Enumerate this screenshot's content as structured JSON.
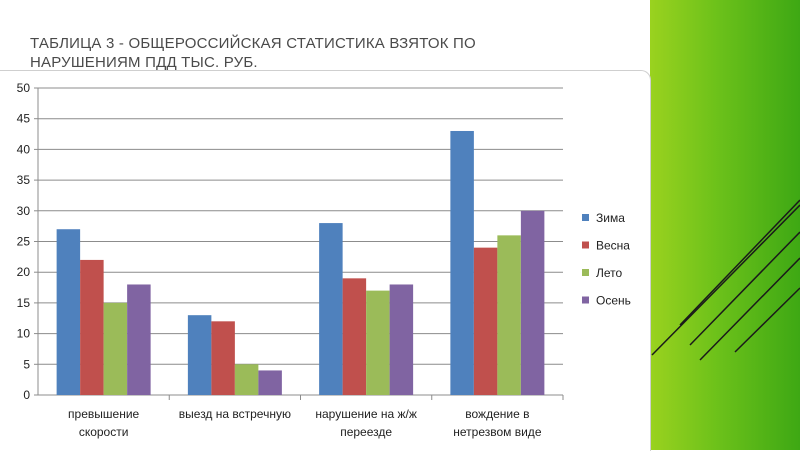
{
  "slide": {
    "title": "Таблица 3 - общероссийская статистика взяток по нарушениям ПДД тыс. руб."
  },
  "colors": {
    "accent_green": "#6cc11a",
    "series": [
      "#4f81bd",
      "#c0504d",
      "#9bbb59",
      "#8064a2"
    ]
  },
  "chart_data": {
    "type": "bar",
    "title": "",
    "xlabel": "",
    "ylabel": "",
    "ylim": [
      0,
      50
    ],
    "yticks": [
      0,
      5,
      10,
      15,
      20,
      25,
      30,
      35,
      40,
      45,
      50
    ],
    "grid": true,
    "legend_position": "right",
    "categories": [
      [
        "превышение",
        "скорости"
      ],
      [
        "выезд на встречную"
      ],
      [
        "нарушение на ж/ж",
        "переезде"
      ],
      [
        "вождение в",
        "нетрезвом виде"
      ]
    ],
    "series": [
      {
        "name": "Зима",
        "color": "#4f81bd",
        "values": [
          27,
          13,
          28,
          43
        ]
      },
      {
        "name": "Весна",
        "color": "#c0504d",
        "values": [
          22,
          12,
          19,
          24
        ]
      },
      {
        "name": "Лето",
        "color": "#9bbb59",
        "values": [
          15,
          5,
          17,
          26
        ]
      },
      {
        "name": "Осень",
        "color": "#8064a2",
        "values": [
          18,
          4,
          18,
          30
        ]
      }
    ]
  }
}
